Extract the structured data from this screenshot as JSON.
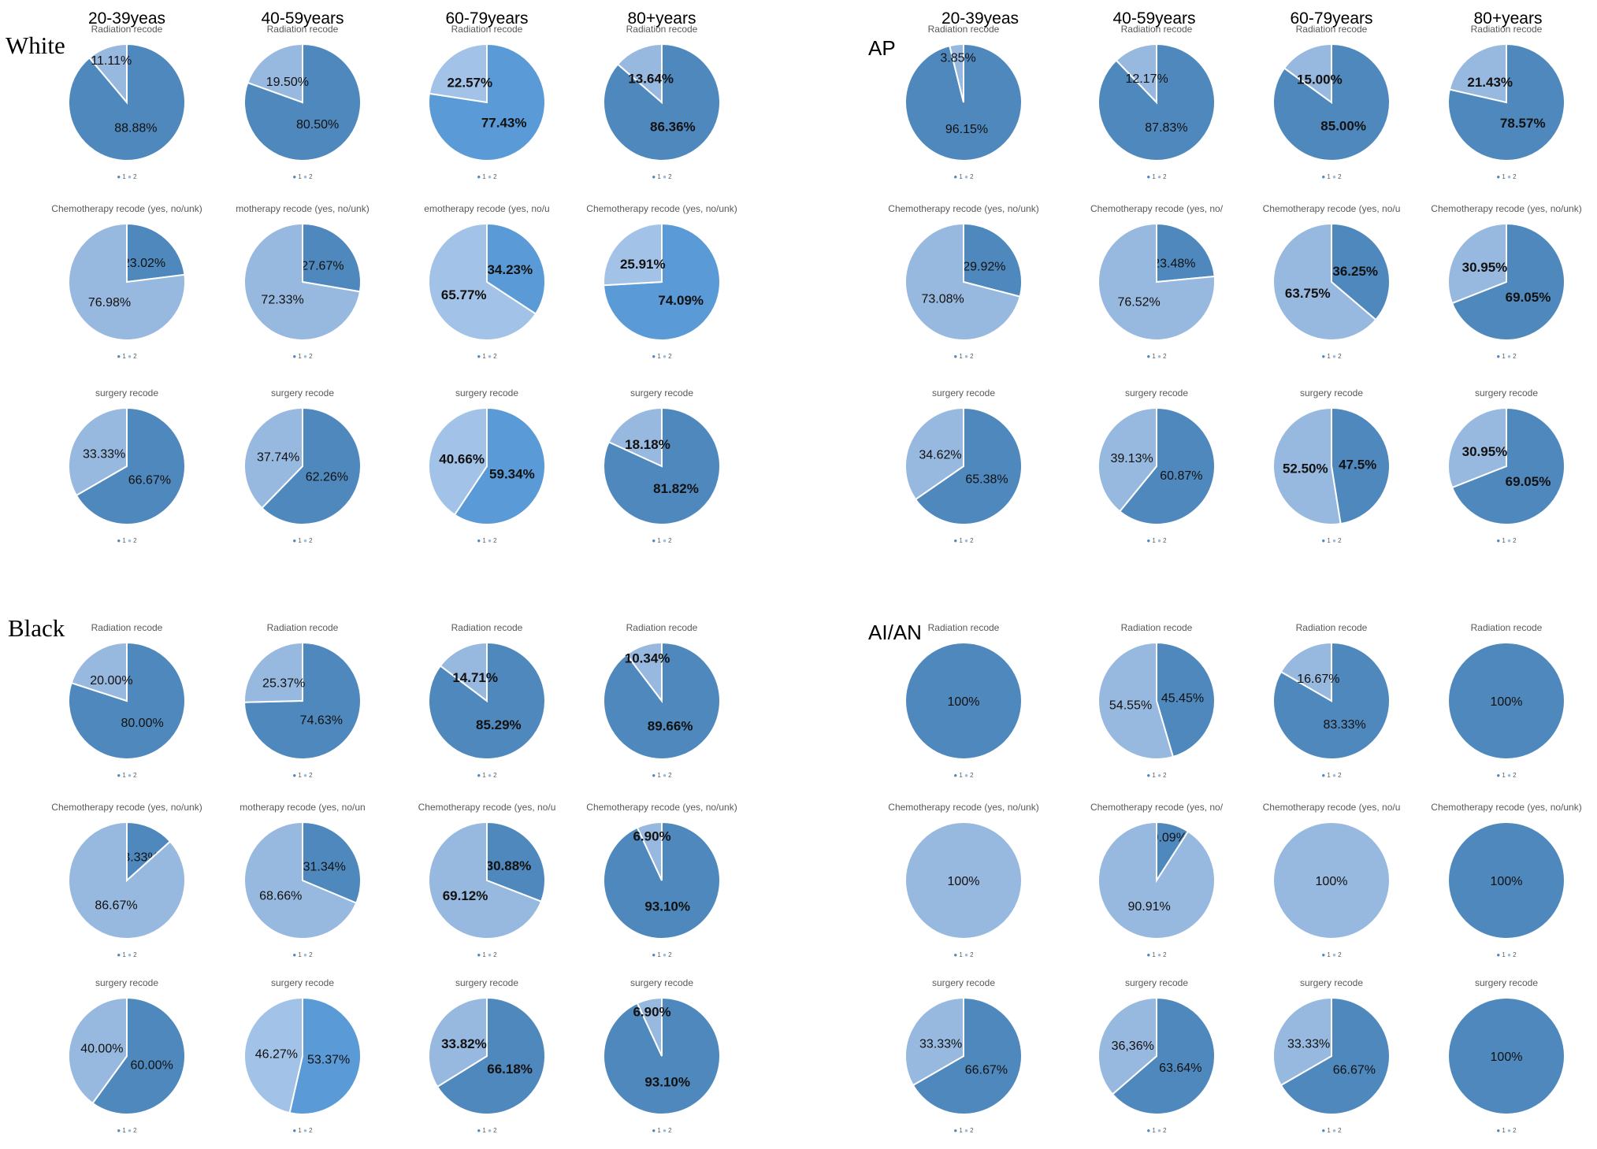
{
  "colors": {
    "dark": "#4e88bd",
    "light": "#97b8df",
    "bright": "#5a9ad6",
    "pale": "#a2c3e7"
  },
  "column_headers": [
    "20-39yeas",
    "40-59years",
    "60-79years",
    "80+years"
  ],
  "group_labels": {
    "white": "White",
    "ap": "AP",
    "black": "Black",
    "aian": "AI/AN"
  },
  "legend": {
    "item1": "1",
    "item2": "2"
  },
  "chart_data": [
    {
      "type": "pie",
      "group": "White",
      "age": "20-39yeas",
      "title": "Radiation recode",
      "labels": [
        "1",
        "2"
      ],
      "values": [
        88.88,
        11.11
      ],
      "value_labels": [
        "88.88%",
        "11.11%"
      ],
      "colors": [
        "#4e88bd",
        "#97b8df"
      ],
      "bold": false
    },
    {
      "type": "pie",
      "group": "White",
      "age": "40-59years",
      "title": "Radiation recode",
      "labels": [
        "1",
        "2"
      ],
      "values": [
        80.5,
        19.5
      ],
      "value_labels": [
        "80.50%",
        "19.50%"
      ],
      "colors": [
        "#4e88bd",
        "#97b8df"
      ],
      "bold": false
    },
    {
      "type": "pie",
      "group": "White",
      "age": "60-79years",
      "title": "Radiation recode",
      "labels": [
        "1",
        "2"
      ],
      "values": [
        77.43,
        22.57
      ],
      "value_labels": [
        "77.43%",
        "22.57%"
      ],
      "colors": [
        "#5a9ad6",
        "#a2c3e7"
      ],
      "bold": true
    },
    {
      "type": "pie",
      "group": "White",
      "age": "80+years",
      "title": "Radiation recode",
      "labels": [
        "1",
        "2"
      ],
      "values": [
        86.36,
        13.64
      ],
      "value_labels": [
        "86.36%",
        "13.64%"
      ],
      "colors": [
        "#4e88bd",
        "#97b8df"
      ],
      "bold": true
    },
    {
      "type": "pie",
      "group": "White",
      "age": "20-39yeas",
      "title": "Chemotherapy recode (yes, no/unk)",
      "labels": [
        "1",
        "2"
      ],
      "values": [
        23.02,
        76.98
      ],
      "value_labels": [
        "23.02%",
        "76.98%"
      ],
      "colors": [
        "#4e88bd",
        "#97b8df"
      ],
      "bold": false
    },
    {
      "type": "pie",
      "group": "White",
      "age": "40-59years",
      "title": "motherapy recode (yes, no/unk)",
      "labels": [
        "1",
        "2"
      ],
      "values": [
        27.67,
        72.33
      ],
      "value_labels": [
        "27.67%",
        "72.33%"
      ],
      "colors": [
        "#4e88bd",
        "#97b8df"
      ],
      "bold": false
    },
    {
      "type": "pie",
      "group": "White",
      "age": "60-79years",
      "title": "emotherapy recode (yes, no/u",
      "labels": [
        "1",
        "2"
      ],
      "values": [
        34.23,
        65.77
      ],
      "value_labels": [
        "34.23%",
        "65.77%"
      ],
      "colors": [
        "#5a9ad6",
        "#a2c3e7"
      ],
      "bold": true
    },
    {
      "type": "pie",
      "group": "White",
      "age": "80+years",
      "title": "Chemotherapy recode (yes, no/unk)",
      "labels": [
        "1",
        "2"
      ],
      "values": [
        74.09,
        25.91
      ],
      "value_labels": [
        "74.09%",
        "25.91%"
      ],
      "colors": [
        "#5a9ad6",
        "#a2c3e7"
      ],
      "bold": true
    },
    {
      "type": "pie",
      "group": "White",
      "age": "20-39yeas",
      "title": "surgery recode",
      "labels": [
        "1",
        "2"
      ],
      "values": [
        66.67,
        33.33
      ],
      "value_labels": [
        "66.67%",
        "33.33%"
      ],
      "colors": [
        "#4e88bd",
        "#97b8df"
      ],
      "bold": false
    },
    {
      "type": "pie",
      "group": "White",
      "age": "40-59years",
      "title": "surgery recode",
      "labels": [
        "1",
        "2"
      ],
      "values": [
        62.26,
        37.74
      ],
      "value_labels": [
        "62.26%",
        "37.74%"
      ],
      "colors": [
        "#4e88bd",
        "#97b8df"
      ],
      "bold": false
    },
    {
      "type": "pie",
      "group": "White",
      "age": "60-79years",
      "title": "surgery recode",
      "labels": [
        "1",
        "2"
      ],
      "values": [
        59.34,
        40.66
      ],
      "value_labels": [
        "59.34%",
        "40.66%"
      ],
      "colors": [
        "#5a9ad6",
        "#a2c3e7"
      ],
      "bold": true
    },
    {
      "type": "pie",
      "group": "White",
      "age": "80+years",
      "title": "surgery recode",
      "labels": [
        "1",
        "2"
      ],
      "values": [
        81.82,
        18.18
      ],
      "value_labels": [
        "81.82%",
        "18.18%"
      ],
      "colors": [
        "#4e88bd",
        "#97b8df"
      ],
      "bold": true
    },
    {
      "type": "pie",
      "group": "AP",
      "age": "20-39yeas",
      "title": "Radiation recode",
      "labels": [
        "1",
        "2"
      ],
      "values": [
        96.15,
        3.85
      ],
      "value_labels": [
        "96.15%",
        "3.85%"
      ],
      "colors": [
        "#4e88bd",
        "#97b8df"
      ],
      "bold": false
    },
    {
      "type": "pie",
      "group": "AP",
      "age": "40-59years",
      "title": "Radiation recode",
      "labels": [
        "1",
        "2"
      ],
      "values": [
        87.83,
        12.17
      ],
      "value_labels": [
        "87.83%",
        "12.17%"
      ],
      "colors": [
        "#4e88bd",
        "#97b8df"
      ],
      "bold": false
    },
    {
      "type": "pie",
      "group": "AP",
      "age": "60-79years",
      "title": "Radiation recode",
      "labels": [
        "1",
        "2"
      ],
      "values": [
        85.0,
        15.0
      ],
      "value_labels": [
        "85.00%",
        "15.00%"
      ],
      "colors": [
        "#4e88bd",
        "#97b8df"
      ],
      "bold": true
    },
    {
      "type": "pie",
      "group": "AP",
      "age": "80+years",
      "title": "Radiation recode",
      "labels": [
        "1",
        "2"
      ],
      "values": [
        78.57,
        21.43
      ],
      "value_labels": [
        "78.57%",
        "21.43%"
      ],
      "colors": [
        "#4e88bd",
        "#97b8df"
      ],
      "bold": true
    },
    {
      "type": "pie",
      "group": "AP",
      "age": "20-39yeas",
      "title": "Chemotherapy recode (yes, no/unk)",
      "labels": [
        "1",
        "2"
      ],
      "values": [
        29.92,
        73.08
      ],
      "value_labels": [
        "29.92%",
        "73.08%"
      ],
      "colors": [
        "#4e88bd",
        "#97b8df"
      ],
      "bold": false
    },
    {
      "type": "pie",
      "group": "AP",
      "age": "40-59years",
      "title": "Chemotherapy recode (yes, no/",
      "labels": [
        "1",
        "2"
      ],
      "values": [
        23.48,
        76.52
      ],
      "value_labels": [
        "23.48%",
        "76.52%"
      ],
      "colors": [
        "#4e88bd",
        "#97b8df"
      ],
      "bold": false
    },
    {
      "type": "pie",
      "group": "AP",
      "age": "60-79years",
      "title": "Chemotherapy recode (yes, no/u",
      "labels": [
        "1",
        "2"
      ],
      "values": [
        36.25,
        63.75
      ],
      "value_labels": [
        "36.25%",
        "63.75%"
      ],
      "colors": [
        "#4e88bd",
        "#97b8df"
      ],
      "bold": true
    },
    {
      "type": "pie",
      "group": "AP",
      "age": "80+years",
      "title": "Chemotherapy recode (yes, no/unk)",
      "labels": [
        "1",
        "2"
      ],
      "values": [
        69.05,
        30.95
      ],
      "value_labels": [
        "69.05%",
        "30.95%"
      ],
      "colors": [
        "#4e88bd",
        "#97b8df"
      ],
      "bold": true
    },
    {
      "type": "pie",
      "group": "AP",
      "age": "20-39yeas",
      "title": "surgery recode",
      "labels": [
        "1",
        "2"
      ],
      "values": [
        65.38,
        34.62
      ],
      "value_labels": [
        "65.38%",
        "34.62%"
      ],
      "colors": [
        "#4e88bd",
        "#97b8df"
      ],
      "bold": false
    },
    {
      "type": "pie",
      "group": "AP",
      "age": "40-59years",
      "title": "surgery recode",
      "labels": [
        "1",
        "2"
      ],
      "values": [
        60.87,
        39.13
      ],
      "value_labels": [
        "60.87%",
        "39.13%"
      ],
      "colors": [
        "#4e88bd",
        "#97b8df"
      ],
      "bold": false
    },
    {
      "type": "pie",
      "group": "AP",
      "age": "60-79years",
      "title": "surgery recode",
      "labels": [
        "1",
        "2"
      ],
      "values": [
        47.5,
        52.5
      ],
      "value_labels": [
        "47.5%",
        "52.50%"
      ],
      "colors": [
        "#4e88bd",
        "#97b8df"
      ],
      "bold": true
    },
    {
      "type": "pie",
      "group": "AP",
      "age": "80+years",
      "title": "surgery recode",
      "labels": [
        "1",
        "2"
      ],
      "values": [
        69.05,
        30.95
      ],
      "value_labels": [
        "69.05%",
        "30.95%"
      ],
      "colors": [
        "#4e88bd",
        "#97b8df"
      ],
      "bold": true
    },
    {
      "type": "pie",
      "group": "Black",
      "age": "20-39yeas",
      "title": "Radiation recode",
      "labels": [
        "1",
        "2"
      ],
      "values": [
        80.0,
        20.0
      ],
      "value_labels": [
        "80.00%",
        "20.00%"
      ],
      "colors": [
        "#4e88bd",
        "#97b8df"
      ],
      "bold": false
    },
    {
      "type": "pie",
      "group": "Black",
      "age": "40-59years",
      "title": "Radiation recode",
      "labels": [
        "1",
        "2"
      ],
      "values": [
        74.63,
        25.37
      ],
      "value_labels": [
        "74.63%",
        "25.37%"
      ],
      "colors": [
        "#4e88bd",
        "#97b8df"
      ],
      "bold": false
    },
    {
      "type": "pie",
      "group": "Black",
      "age": "60-79years",
      "title": "Radiation recode",
      "labels": [
        "1",
        "2"
      ],
      "values": [
        85.29,
        14.71
      ],
      "value_labels": [
        "85.29%",
        "14.71%"
      ],
      "colors": [
        "#4e88bd",
        "#97b8df"
      ],
      "bold": true
    },
    {
      "type": "pie",
      "group": "Black",
      "age": "80+years",
      "title": "Radiation recode",
      "labels": [
        "1",
        "2"
      ],
      "values": [
        89.66,
        10.34
      ],
      "value_labels": [
        "89.66%",
        "10.34%"
      ],
      "colors": [
        "#4e88bd",
        "#97b8df"
      ],
      "bold": true
    },
    {
      "type": "pie",
      "group": "Black",
      "age": "20-39yeas",
      "title": "Chemotherapy recode (yes, no/unk)",
      "labels": [
        "1",
        "2"
      ],
      "values": [
        13.33,
        86.67
      ],
      "value_labels": [
        "13.33%",
        "86.67%"
      ],
      "colors": [
        "#4e88bd",
        "#97b8df"
      ],
      "bold": false
    },
    {
      "type": "pie",
      "group": "Black",
      "age": "40-59years",
      "title": "motherapy recode (yes, no/un",
      "labels": [
        "1",
        "2"
      ],
      "values": [
        31.34,
        68.66
      ],
      "value_labels": [
        "31.34%",
        "68.66%"
      ],
      "colors": [
        "#4e88bd",
        "#97b8df"
      ],
      "bold": false
    },
    {
      "type": "pie",
      "group": "Black",
      "age": "60-79years",
      "title": "Chemotherapy recode (yes, no/u",
      "labels": [
        "1",
        "2"
      ],
      "values": [
        30.88,
        69.12
      ],
      "value_labels": [
        "30.88%",
        "69.12%"
      ],
      "colors": [
        "#4e88bd",
        "#97b8df"
      ],
      "bold": true
    },
    {
      "type": "pie",
      "group": "Black",
      "age": "80+years",
      "title": "Chemotherapy recode (yes, no/unk)",
      "labels": [
        "1",
        "2"
      ],
      "values": [
        93.1,
        6.9
      ],
      "value_labels": [
        "93.10%",
        "6.90%"
      ],
      "colors": [
        "#4e88bd",
        "#97b8df"
      ],
      "bold": true
    },
    {
      "type": "pie",
      "group": "Black",
      "age": "20-39yeas",
      "title": "surgery recode",
      "labels": [
        "1",
        "2"
      ],
      "values": [
        60.0,
        40.0
      ],
      "value_labels": [
        "60.00%",
        "40.00%"
      ],
      "colors": [
        "#4e88bd",
        "#97b8df"
      ],
      "bold": false
    },
    {
      "type": "pie",
      "group": "Black",
      "age": "40-59years",
      "title": "surgery recode",
      "labels": [
        "1",
        "2"
      ],
      "values": [
        53.37,
        46.27
      ],
      "value_labels": [
        "53.37%",
        "46.27%"
      ],
      "colors": [
        "#5a9ad6",
        "#a2c3e7"
      ],
      "bold": false
    },
    {
      "type": "pie",
      "group": "Black",
      "age": "60-79years",
      "title": "surgery recode",
      "labels": [
        "1",
        "2"
      ],
      "values": [
        66.18,
        33.82
      ],
      "value_labels": [
        "66.18%",
        "33.82%"
      ],
      "colors": [
        "#4e88bd",
        "#97b8df"
      ],
      "bold": true
    },
    {
      "type": "pie",
      "group": "Black",
      "age": "80+years",
      "title": "surgery recode",
      "labels": [
        "1",
        "2"
      ],
      "values": [
        93.1,
        6.9
      ],
      "value_labels": [
        "93.10%",
        "6.90%"
      ],
      "colors": [
        "#4e88bd",
        "#97b8df"
      ],
      "bold": true
    },
    {
      "type": "pie",
      "group": "AI/AN",
      "age": "20-39yeas",
      "title": "Radiation recode",
      "labels": [
        "1",
        "2"
      ],
      "values": [
        100,
        0
      ],
      "value_labels": [
        "100%",
        ""
      ],
      "colors": [
        "#4e88bd",
        "#97b8df"
      ],
      "bold": false
    },
    {
      "type": "pie",
      "group": "AI/AN",
      "age": "40-59years",
      "title": "Radiation recode",
      "labels": [
        "1",
        "2"
      ],
      "values": [
        45.45,
        54.55
      ],
      "value_labels": [
        "45.45%",
        "54.55%"
      ],
      "colors": [
        "#4e88bd",
        "#97b8df"
      ],
      "bold": false
    },
    {
      "type": "pie",
      "group": "AI/AN",
      "age": "60-79years",
      "title": "Radiation recode",
      "labels": [
        "1",
        "2"
      ],
      "values": [
        83.33,
        16.67
      ],
      "value_labels": [
        "83.33%",
        "16.67%"
      ],
      "colors": [
        "#4e88bd",
        "#97b8df"
      ],
      "bold": false
    },
    {
      "type": "pie",
      "group": "AI/AN",
      "age": "80+years",
      "title": "Radiation recode",
      "labels": [
        "1",
        "2"
      ],
      "values": [
        100,
        0
      ],
      "value_labels": [
        "100%",
        ""
      ],
      "colors": [
        "#4e88bd",
        "#97b8df"
      ],
      "bold": false
    },
    {
      "type": "pie",
      "group": "AI/AN",
      "age": "20-39yeas",
      "title": "Chemotherapy recode (yes, no/unk)",
      "labels": [
        "1",
        "2"
      ],
      "values": [
        0,
        100
      ],
      "value_labels": [
        "",
        "100%"
      ],
      "colors": [
        "#4e88bd",
        "#97b8df"
      ],
      "bold": false
    },
    {
      "type": "pie",
      "group": "AI/AN",
      "age": "40-59years",
      "title": "Chemotherapy recode (yes, no/",
      "labels": [
        "1",
        "2"
      ],
      "values": [
        9.09,
        90.91
      ],
      "value_labels": [
        "9.09%",
        "90.91%"
      ],
      "colors": [
        "#4e88bd",
        "#97b8df"
      ],
      "bold": false
    },
    {
      "type": "pie",
      "group": "AI/AN",
      "age": "60-79years",
      "title": "Chemotherapy recode (yes, no/u",
      "labels": [
        "1",
        "2"
      ],
      "values": [
        0,
        100
      ],
      "value_labels": [
        "",
        "100%"
      ],
      "colors": [
        "#4e88bd",
        "#97b8df"
      ],
      "bold": false
    },
    {
      "type": "pie",
      "group": "AI/AN",
      "age": "80+years",
      "title": "Chemotherapy recode (yes, no/unk)",
      "labels": [
        "1",
        "2"
      ],
      "values": [
        100,
        0
      ],
      "value_labels": [
        "100%",
        ""
      ],
      "colors": [
        "#4e88bd",
        "#97b8df"
      ],
      "bold": false
    },
    {
      "type": "pie",
      "group": "AI/AN",
      "age": "20-39yeas",
      "title": "surgery recode",
      "labels": [
        "1",
        "2"
      ],
      "values": [
        66.67,
        33.33
      ],
      "value_labels": [
        "66.67%",
        "33.33%"
      ],
      "colors": [
        "#4e88bd",
        "#97b8df"
      ],
      "bold": false
    },
    {
      "type": "pie",
      "group": "AI/AN",
      "age": "40-59years",
      "title": "surgery recode",
      "labels": [
        "1",
        "2"
      ],
      "values": [
        63.64,
        36.36
      ],
      "value_labels": [
        "63.64%",
        "36,36%"
      ],
      "colors": [
        "#4e88bd",
        "#97b8df"
      ],
      "bold": false
    },
    {
      "type": "pie",
      "group": "AI/AN",
      "age": "60-79years",
      "title": "surgery recode",
      "labels": [
        "1",
        "2"
      ],
      "values": [
        66.67,
        33.33
      ],
      "value_labels": [
        "66.67%",
        "33.33%"
      ],
      "colors": [
        "#4e88bd",
        "#97b8df"
      ],
      "bold": false
    },
    {
      "type": "pie",
      "group": "AI/AN",
      "age": "80+years",
      "title": "surgery recode",
      "labels": [
        "1",
        "2"
      ],
      "values": [
        100,
        0
      ],
      "value_labels": [
        "100%",
        ""
      ],
      "colors": [
        "#4e88bd",
        "#97b8df"
      ],
      "bold": false
    }
  ]
}
